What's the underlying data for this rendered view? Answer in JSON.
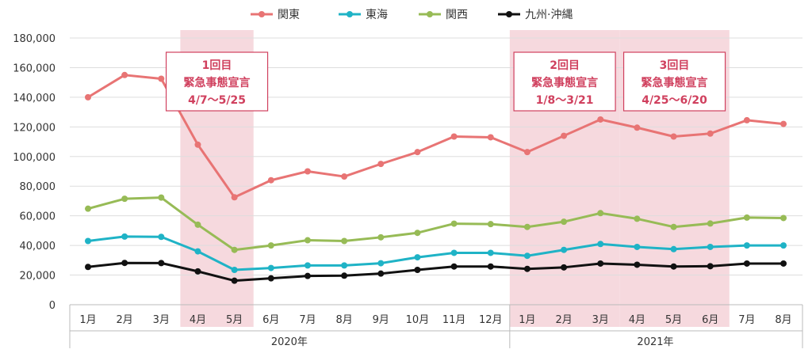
{
  "chart_data": {
    "type": "line",
    "title": "",
    "xlabel": "",
    "ylabel": "",
    "ylim": [
      0,
      180000
    ],
    "yticks": [
      0,
      20000,
      40000,
      60000,
      80000,
      100000,
      120000,
      140000,
      160000,
      180000
    ],
    "ytick_labels": [
      "0",
      "20,000",
      "40,000",
      "60,000",
      "80,000",
      "100,000",
      "120,000",
      "140,000",
      "160,000",
      "180,000"
    ],
    "categories": [
      "1月",
      "2月",
      "3月",
      "4月",
      "5月",
      "6月",
      "7月",
      "8月",
      "9月",
      "10月",
      "11月",
      "12月",
      "1月",
      "2月",
      "3月",
      "4月",
      "5月",
      "6月",
      "7月",
      "8月"
    ],
    "year_groups": [
      {
        "label": "2020年",
        "start": 0,
        "end": 11
      },
      {
        "label": "2021年",
        "start": 12,
        "end": 19
      }
    ],
    "grid": true,
    "legend_position": "top-center",
    "series": [
      {
        "name": "関東",
        "color": "#e87474",
        "values": [
          140000,
          155000,
          152500,
          108000,
          72500,
          84000,
          90000,
          86500,
          95000,
          103000,
          113500,
          113000,
          103000,
          114000,
          125000,
          119500,
          113500,
          115500,
          124500,
          122000
        ]
      },
      {
        "name": "東海",
        "color": "#1fb3c6",
        "values": [
          43000,
          46000,
          45800,
          36000,
          23500,
          24800,
          26500,
          26500,
          28000,
          32000,
          35000,
          35000,
          33000,
          37000,
          41000,
          39000,
          37500,
          39000,
          40000,
          40000
        ]
      },
      {
        "name": "関西",
        "color": "#97bb56",
        "values": [
          64800,
          71500,
          72300,
          54000,
          37000,
          40000,
          43500,
          43000,
          45500,
          48500,
          54700,
          54400,
          52500,
          56000,
          61800,
          58000,
          52500,
          54800,
          58800,
          58500
        ]
      },
      {
        "name": "九州·沖縄",
        "color": "#111111",
        "values": [
          25500,
          28200,
          28100,
          22500,
          16200,
          17800,
          19400,
          19600,
          21000,
          23500,
          25800,
          25800,
          24200,
          25200,
          27800,
          27000,
          25800,
          26000,
          27800,
          27800
        ]
      }
    ],
    "annotations": [
      {
        "start": 3,
        "end": 4,
        "lines": [
          "1回目",
          "緊急事態宣言",
          "4/7〜5/25"
        ]
      },
      {
        "start": 12,
        "end": 14,
        "lines": [
          "2回目",
          "緊急事態宣言",
          "1/8〜3/21"
        ]
      },
      {
        "start": 15,
        "end": 17,
        "lines": [
          "3回目",
          "緊急事態宣言",
          "4/25〜6/20"
        ]
      }
    ],
    "colors": {
      "shade": "#f6d9de",
      "anno_border": "#d0405e",
      "anno_text": "#d0405e",
      "grid": "#dddddd",
      "axis": "#bbbbbb"
    }
  }
}
